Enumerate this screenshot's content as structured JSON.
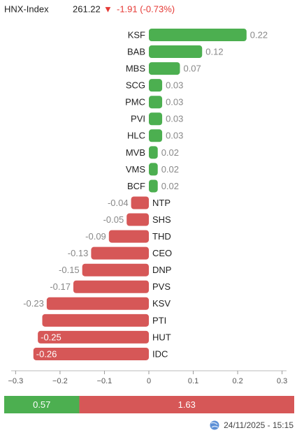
{
  "header": {
    "name": "HNX-Index",
    "value": "261.22",
    "arrow": "▼",
    "change": "-1.91 (-0.73%)"
  },
  "chart_data": {
    "type": "hbar",
    "categories": [
      "KSF",
      "BAB",
      "MBS",
      "SCG",
      "PMC",
      "PVI",
      "HLC",
      "MVB",
      "VMS",
      "BCF",
      "NTP",
      "SHS",
      "THD",
      "CEO",
      "DNP",
      "PVS",
      "KSV",
      "PTI",
      "HUT",
      "IDC"
    ],
    "values": [
      0.22,
      0.12,
      0.07,
      0.03,
      0.03,
      0.03,
      0.03,
      0.02,
      0.02,
      0.02,
      -0.04,
      -0.05,
      -0.09,
      -0.13,
      -0.15,
      -0.17,
      -0.23,
      -0.24,
      -0.25,
      -0.26
    ],
    "value_labels": [
      "0.22",
      "0.12",
      "0.07",
      "0.03",
      "0.03",
      "0.03",
      "0.03",
      "0.02",
      "0.02",
      "0.02",
      "-0.04",
      "-0.05",
      "-0.09",
      "-0.13",
      "-0.15",
      "-0.17",
      "-0.23",
      null,
      "-0.25",
      "-0.26"
    ],
    "positive_color": "#4caf50",
    "negative_color": "#d65757",
    "xlim": [
      -0.31,
      0.31
    ],
    "xticks": [
      {
        "value": -0.3,
        "label": "−0.3"
      },
      {
        "value": -0.2,
        "label": "−0.2"
      },
      {
        "value": -0.1,
        "label": "−0.1"
      },
      0,
      0.1,
      0.2,
      0.3
    ]
  },
  "breadth": {
    "values": [
      0.57,
      1.63
    ],
    "colors": [
      "#4caf50",
      "#d65757"
    ]
  },
  "footer": {
    "timestamp": "24/11/2025 - 15:15"
  }
}
